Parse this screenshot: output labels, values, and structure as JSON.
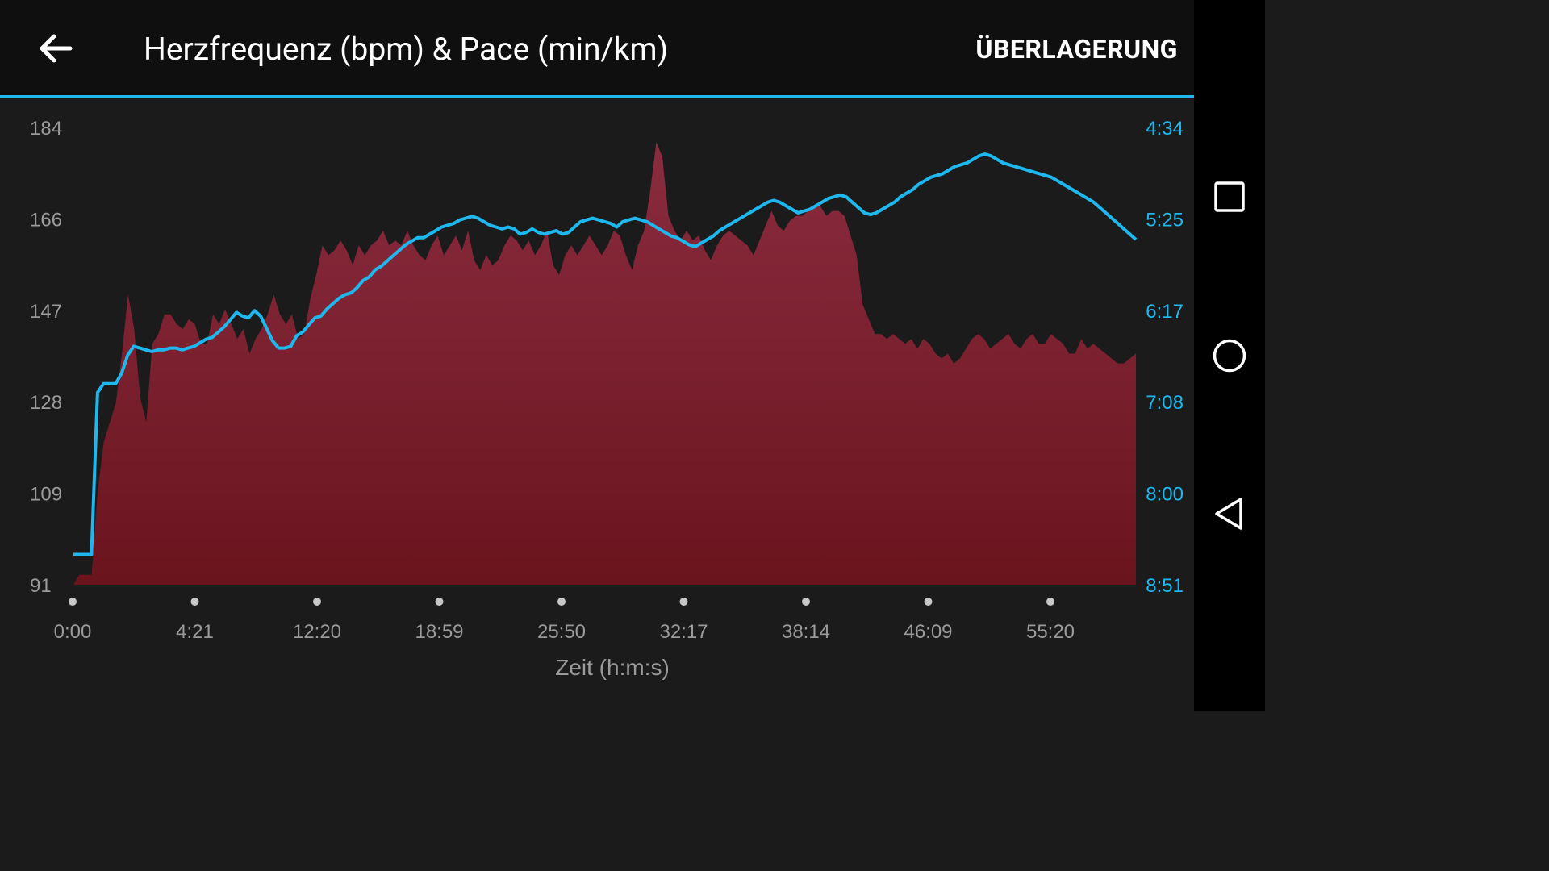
{
  "header": {
    "title": "Herzfrequenz (bpm) & Pace (min/km)",
    "overlay_label": "ÜBERLAGERUNG"
  },
  "icons": {
    "back": "arrow-left-icon",
    "recents": "square-icon",
    "home": "circle-icon",
    "nav_back": "triangle-left-icon"
  },
  "colors": {
    "accent": "#1eb8ef",
    "area_top": "#8a2c3f",
    "area_bottom": "#6a141e",
    "tick_left": "#9a9a9a",
    "tick_right": "#1eb8ef"
  },
  "chart_data": {
    "type": "area",
    "xlabel": "Zeit (h:m:s)",
    "x_ticks": [
      "0:00",
      "4:21",
      "12:20",
      "18:59",
      "25:50",
      "32:17",
      "38:14",
      "46:09",
      "55:20"
    ],
    "left_axis": {
      "ticks": [
        "184",
        "166",
        "147",
        "128",
        "109",
        "91"
      ],
      "range": [
        91,
        184
      ]
    },
    "right_axis": {
      "ticks": [
        "4:34",
        "5:25",
        "6:17",
        "7:08",
        "8:00",
        "8:51"
      ],
      "range_seconds": [
        274,
        531
      ],
      "inverted": true
    },
    "sample_times": [
      "0:00",
      "4:21",
      "12:20",
      "18:59",
      "25:50",
      "32:17",
      "38:14",
      "46:09",
      "55:20",
      "59:00"
    ],
    "series": [
      {
        "type": "area",
        "axis": "left",
        "values": [
          91,
          93,
          93,
          93,
          110,
          120,
          124,
          128,
          138,
          150,
          143,
          129,
          124,
          140,
          142,
          146,
          146,
          144,
          143,
          145,
          144,
          140,
          140,
          146,
          144,
          147,
          144,
          141,
          143,
          138,
          141,
          143,
          146,
          150,
          146,
          144,
          146,
          141,
          142,
          149,
          154,
          160,
          158,
          159,
          161,
          159,
          156,
          160,
          158,
          160,
          161,
          163,
          160,
          161,
          160,
          163,
          160,
          158,
          157,
          160,
          162,
          158,
          160,
          162,
          159,
          163,
          157,
          155,
          158,
          156,
          157,
          160,
          162,
          161,
          159,
          161,
          158,
          160,
          163,
          156,
          154,
          158,
          160,
          158,
          160,
          162,
          160,
          158,
          160,
          163,
          162,
          158,
          155,
          160,
          163,
          171,
          181,
          178,
          166,
          163,
          161,
          163,
          161,
          162,
          159,
          157,
          160,
          162,
          163,
          162,
          161,
          160,
          158,
          161,
          164,
          167,
          164,
          163,
          165,
          166,
          166,
          167,
          168,
          168,
          166,
          167,
          167,
          166,
          162,
          158,
          148,
          145,
          142,
          142,
          141,
          142,
          141,
          140,
          141,
          139,
          141,
          140,
          138,
          137,
          138,
          136,
          137,
          139,
          141,
          142,
          141,
          139,
          140,
          141,
          142,
          140,
          139,
          141,
          142,
          140,
          140,
          142,
          141,
          140,
          138,
          138,
          141,
          139,
          140,
          139,
          138,
          137,
          136,
          136,
          137,
          138
        ]
      },
      {
        "type": "line",
        "axis": "right",
        "values_seconds": [
          514,
          514,
          514,
          514,
          423,
          418,
          418,
          418,
          412,
          402,
          397,
          398,
          399,
          400,
          399,
          399,
          398,
          398,
          399,
          398,
          397,
          395,
          393,
          392,
          389,
          386,
          382,
          378,
          380,
          381,
          377,
          380,
          387,
          394,
          398,
          398,
          397,
          391,
          389,
          385,
          381,
          380,
          376,
          373,
          370,
          368,
          367,
          364,
          360,
          358,
          354,
          352,
          349,
          346,
          343,
          340,
          338,
          336,
          336,
          334,
          332,
          330,
          329,
          328,
          326,
          325,
          324,
          325,
          327,
          329,
          330,
          331,
          330,
          331,
          334,
          333,
          331,
          333,
          334,
          333,
          332,
          334,
          333,
          330,
          327,
          326,
          325,
          326,
          327,
          328,
          330,
          327,
          326,
          325,
          326,
          327,
          329,
          331,
          333,
          335,
          336,
          338,
          340,
          341,
          339,
          337,
          335,
          332,
          330,
          328,
          326,
          324,
          322,
          320,
          318,
          316,
          315,
          316,
          318,
          320,
          322,
          321,
          320,
          318,
          316,
          314,
          313,
          312,
          313,
          316,
          319,
          322,
          323,
          322,
          320,
          318,
          316,
          313,
          311,
          309,
          306,
          304,
          302,
          301,
          300,
          298,
          296,
          295,
          294,
          292,
          290,
          289,
          290,
          292,
          294,
          295,
          296,
          297,
          298,
          299,
          300,
          301,
          302,
          304,
          306,
          308,
          310,
          312,
          314,
          316,
          319,
          322,
          325,
          328,
          331,
          334,
          337
        ]
      }
    ],
    "grid": false,
    "legend": "none"
  }
}
